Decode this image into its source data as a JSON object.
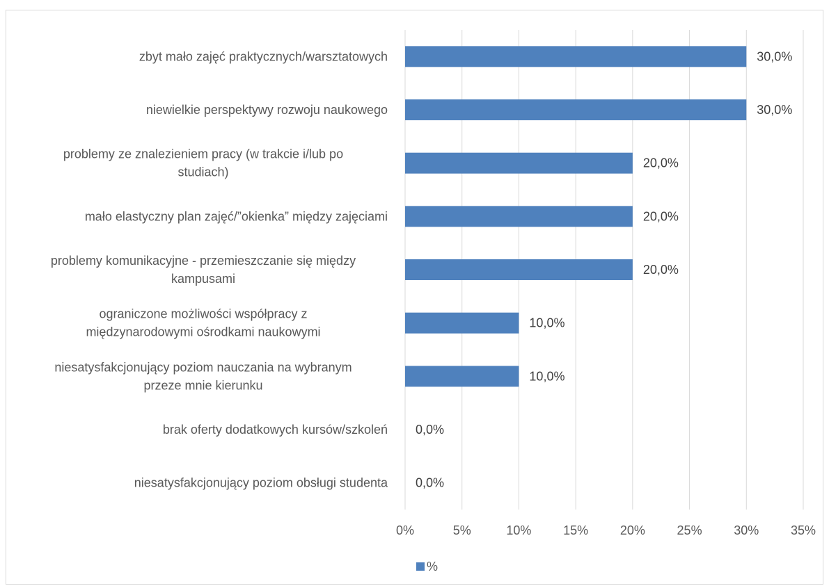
{
  "chart_data": {
    "type": "bar",
    "orientation": "horizontal",
    "categories": [
      "zbyt mało zajęć praktycznych/warsztatowych",
      "niewielkie perspektywy rozwoju naukowego",
      "problemy ze znalezieniem pracy (w trakcie i/lub po studiach)",
      "mało elastyczny plan zajęć/”okienka” między zajęciami",
      "problemy komunikacyjne - przemieszczanie się między kampusami",
      "ograniczone możliwości współpracy z międzynarodowymi ośrodkami naukowymi",
      "niesatysfakcjonujący poziom nauczania na wybranym przeze mnie kierunku",
      "brak oferty dodatkowych kursów/szkoleń",
      "niesatysfakcjonujący poziom obsługi studenta"
    ],
    "category_label_lines": [
      [
        "zbyt mało zajęć praktycznych/warsztatowych"
      ],
      [
        "niewielkie perspektywy rozwoju naukowego"
      ],
      [
        "problemy ze znalezieniem pracy (w trakcie i/lub po",
        "studiach)"
      ],
      [
        "mało elastyczny plan zajęć/”okienka” między zajęciami"
      ],
      [
        "problemy komunikacyjne - przemieszczanie się między",
        "kampusami"
      ],
      [
        "ograniczone możliwości współpracy z",
        "międzynarodowymi ośrodkami naukowymi"
      ],
      [
        "niesatysfakcjonujący poziom nauczania na wybranym",
        "przeze mnie kierunku"
      ],
      [
        "brak oferty dodatkowych kursów/szkoleń"
      ],
      [
        "niesatysfakcjonujący poziom obsługi studenta"
      ]
    ],
    "series": [
      {
        "name": "%",
        "values": [
          30,
          30,
          20,
          20,
          20,
          10,
          10,
          0,
          0
        ],
        "data_labels": [
          "30,0%",
          "30,0%",
          "20,0%",
          "20,0%",
          "20,0%",
          "10,0%",
          "10,0%",
          "0,0%",
          "0,0%"
        ]
      }
    ],
    "xlim": [
      0,
      35
    ],
    "xticks": [
      0,
      5,
      10,
      15,
      20,
      25,
      30,
      35
    ],
    "xtick_labels": [
      "0%",
      "5%",
      "10%",
      "15%",
      "20%",
      "25%",
      "30%",
      "35%"
    ],
    "title": "",
    "xlabel": "",
    "ylabel": "",
    "grid": "vertical",
    "legend_position": "bottom",
    "colors": {
      "bar": "#4f81bd",
      "grid": "#d9d9d9",
      "text": "#595959"
    }
  }
}
